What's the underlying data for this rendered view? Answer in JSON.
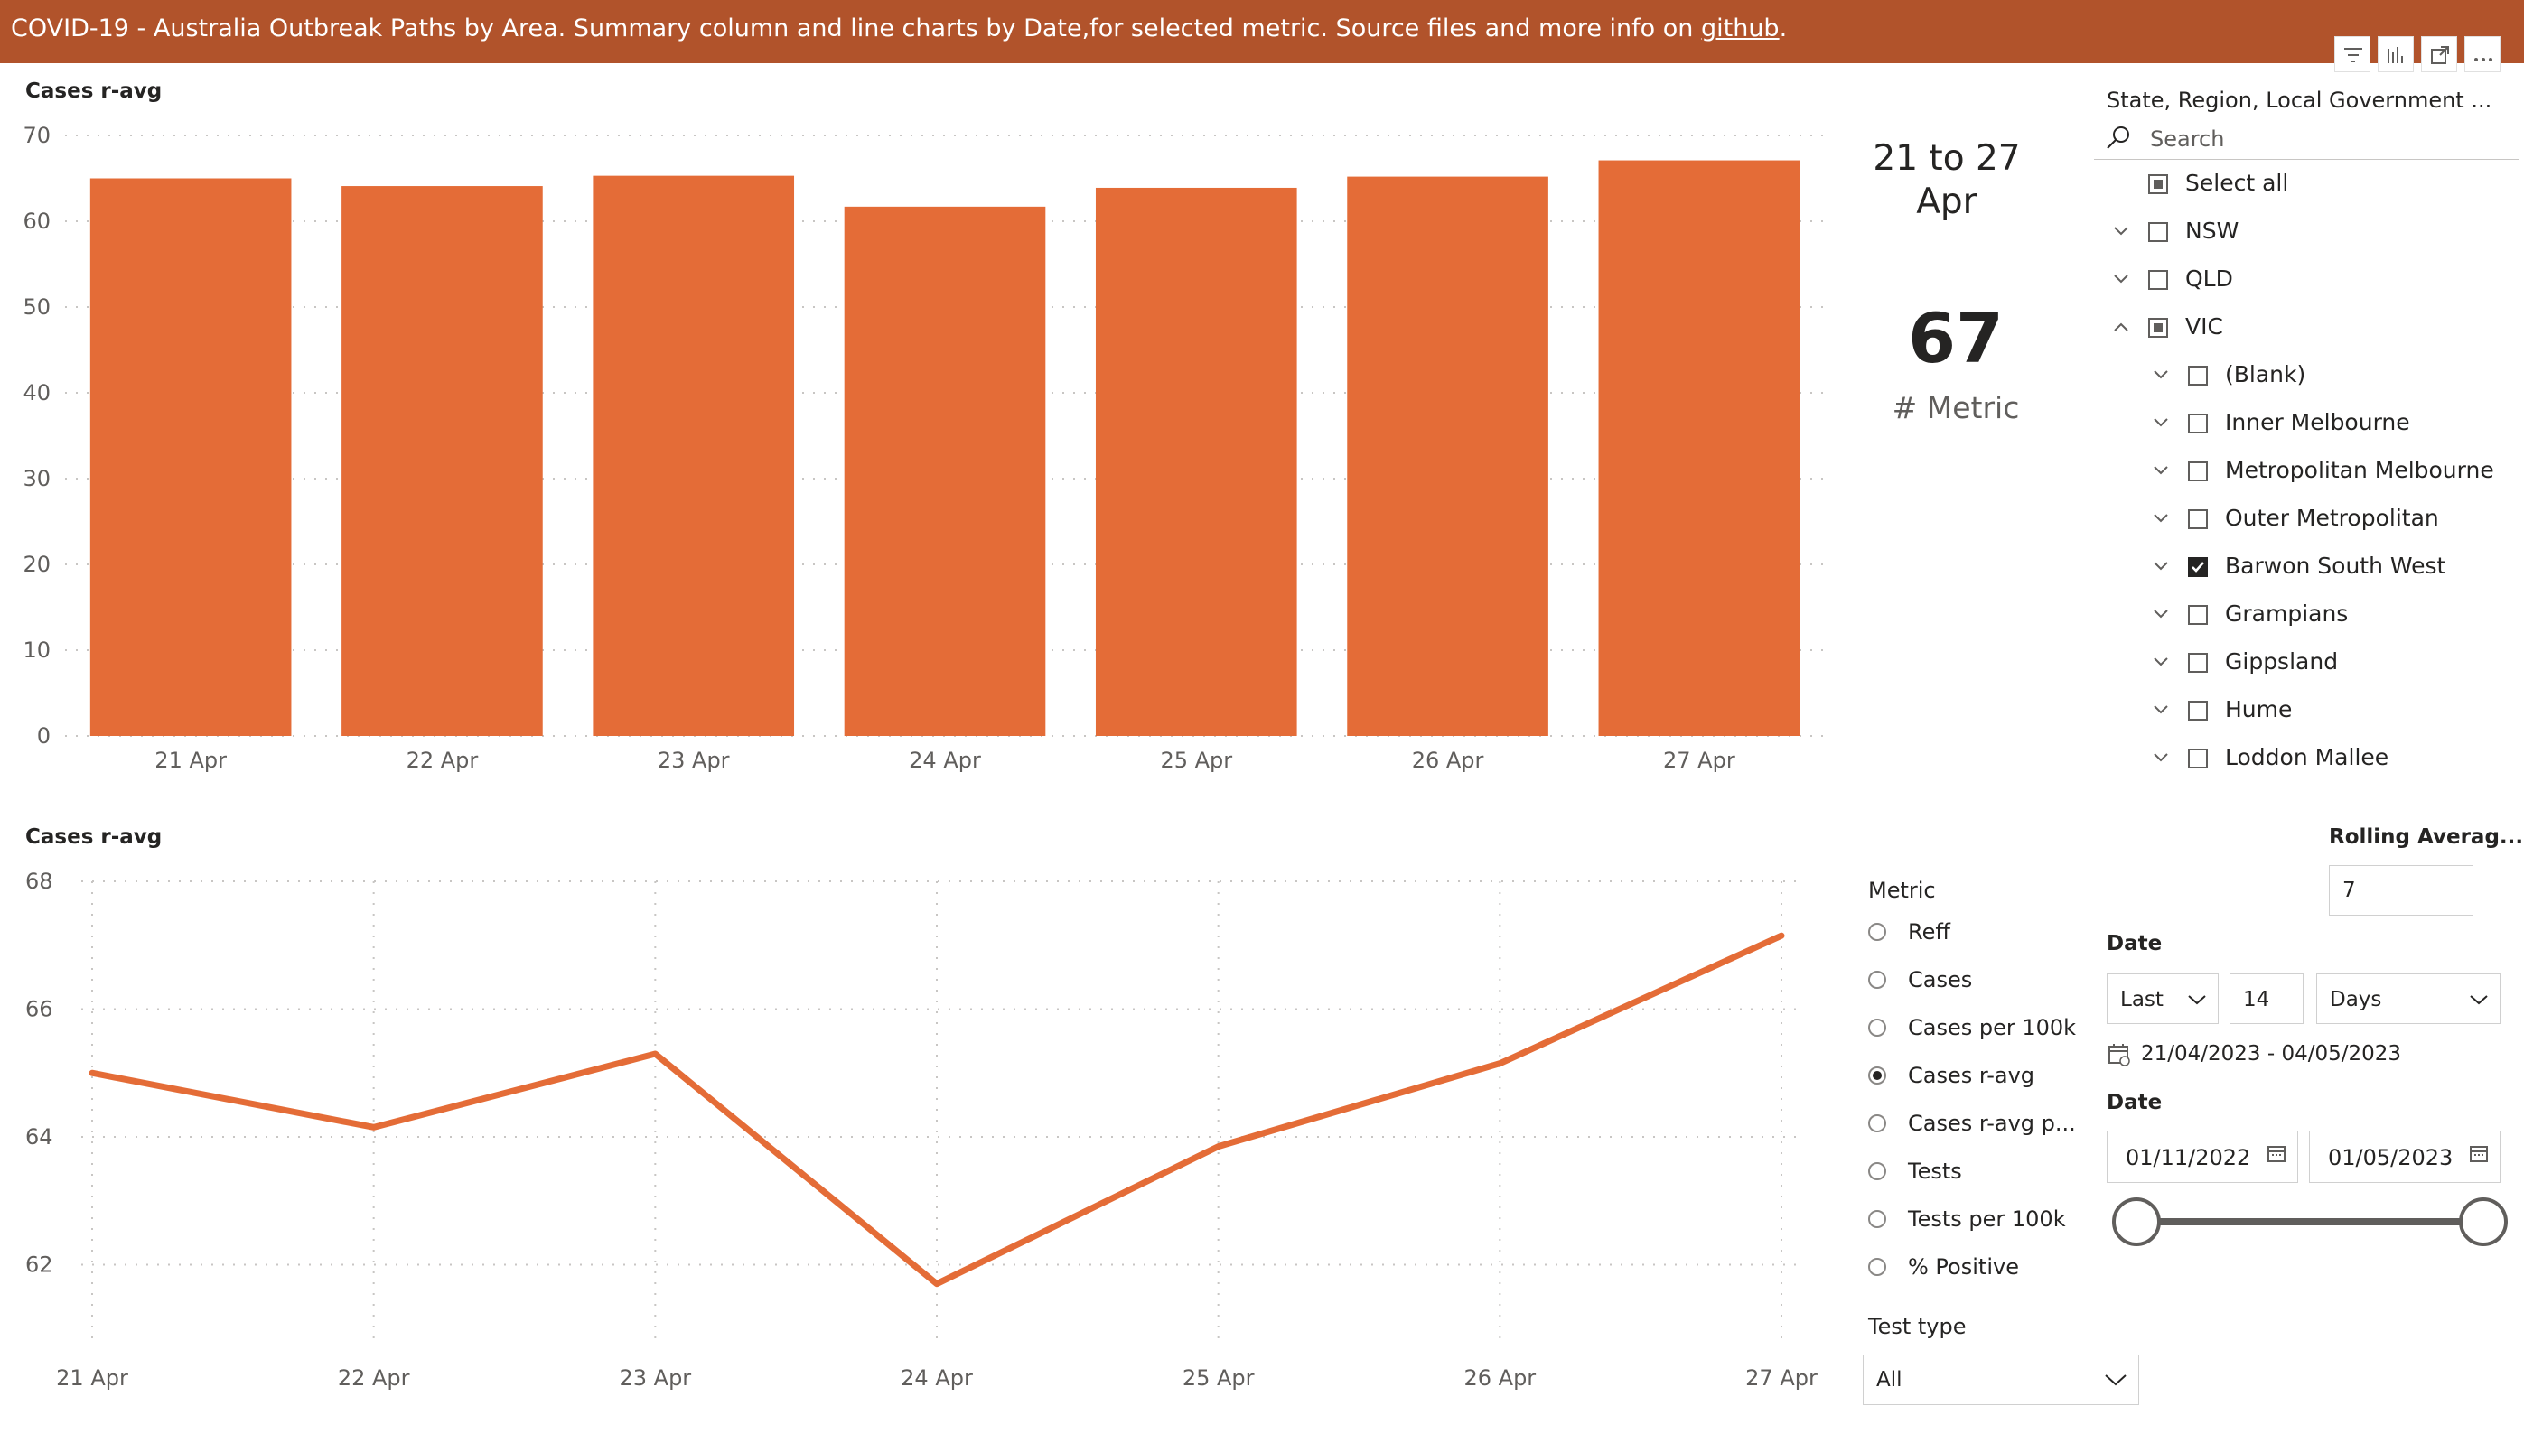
{
  "header": {
    "title_text": "COVID-19  - Australia Outbreak Paths by Area.  Summary column and line charts by Date,for selected metric. Source files and more info on ",
    "link_text": "github",
    "title_end": ".",
    "background": "#b1532b",
    "icons": [
      "filter-icon",
      "visual-info-icon",
      "focus-mode-icon",
      "more-options-icon"
    ]
  },
  "accent_color": "#e46c37",
  "column_chart": {
    "chart_data": {
      "type": "bar",
      "title": "Cases r-avg",
      "categories": [
        "21 Apr",
        "22 Apr",
        "23 Apr",
        "24 Apr",
        "25 Apr",
        "26 Apr",
        "27 Apr"
      ],
      "values": [
        65.0,
        64.1,
        65.3,
        61.7,
        63.9,
        65.2,
        67.1
      ],
      "ylim": [
        0,
        70
      ],
      "yticks": [
        "0",
        "10",
        "20",
        "30",
        "40",
        "50",
        "60",
        "70"
      ],
      "grid": true,
      "color": "#e46c37"
    }
  },
  "line_chart": {
    "chart_data": {
      "type": "line",
      "title": "Cases r-avg",
      "categories": [
        "21 Apr",
        "22 Apr",
        "23 Apr",
        "24 Apr",
        "25 Apr",
        "26 Apr",
        "27 Apr"
      ],
      "values": [
        65.0,
        64.15,
        65.3,
        61.7,
        63.85,
        65.15,
        67.15
      ],
      "ylim": [
        61.3,
        68
      ],
      "yticks": [
        "62",
        "64",
        "66",
        "68"
      ],
      "grid": true,
      "color": "#e46c37"
    }
  },
  "card": {
    "period": "21 to 27 Apr",
    "value": "67",
    "label": "# Metric"
  },
  "area_slicer": {
    "title": "State, Region, Local Government ...",
    "search_placeholder": "Search",
    "items": [
      {
        "label": "Select all",
        "state": "partial",
        "chevron": "none",
        "level": 0
      },
      {
        "label": "NSW",
        "state": "unchecked",
        "chevron": "down",
        "level": 0
      },
      {
        "label": "QLD",
        "state": "unchecked",
        "chevron": "down",
        "level": 0
      },
      {
        "label": "VIC",
        "state": "partial",
        "chevron": "up",
        "level": 0
      },
      {
        "label": "(Blank)",
        "state": "unchecked",
        "chevron": "down",
        "level": 1
      },
      {
        "label": "Inner Melbourne",
        "state": "unchecked",
        "chevron": "down",
        "level": 1
      },
      {
        "label": "Metropolitan Melbourne",
        "state": "unchecked",
        "chevron": "down",
        "level": 1
      },
      {
        "label": "Outer Metropolitan",
        "state": "unchecked",
        "chevron": "down",
        "level": 1
      },
      {
        "label": "Barwon South West",
        "state": "checked",
        "chevron": "down",
        "level": 1
      },
      {
        "label": "Grampians",
        "state": "unchecked",
        "chevron": "down",
        "level": 1
      },
      {
        "label": "Gippsland",
        "state": "unchecked",
        "chevron": "down",
        "level": 1
      },
      {
        "label": "Hume",
        "state": "unchecked",
        "chevron": "down",
        "level": 1
      },
      {
        "label": "Loddon Mallee",
        "state": "unchecked",
        "chevron": "down",
        "level": 1
      }
    ]
  },
  "metric_slicer": {
    "title": "Metric",
    "options": [
      "Reff",
      "Cases",
      "Cases per 100k",
      "Cases r-avg",
      "Cases r-avg p...",
      "Tests",
      "Tests per 100k",
      "% Positive"
    ],
    "selected": "Cases r-avg"
  },
  "rolling_average": {
    "title": "Rolling Averag...",
    "value": "7"
  },
  "relative_date": {
    "title": "Date",
    "mode": "Last",
    "count": "14",
    "unit": "Days",
    "range_text": "21/04/2023 - 04/05/2023"
  },
  "date_range": {
    "title": "Date",
    "start": "01/11/2022",
    "end": "01/05/2023",
    "slider_start": 0,
    "slider_end": 1
  },
  "test_type": {
    "title": "Test type",
    "value": "All"
  }
}
